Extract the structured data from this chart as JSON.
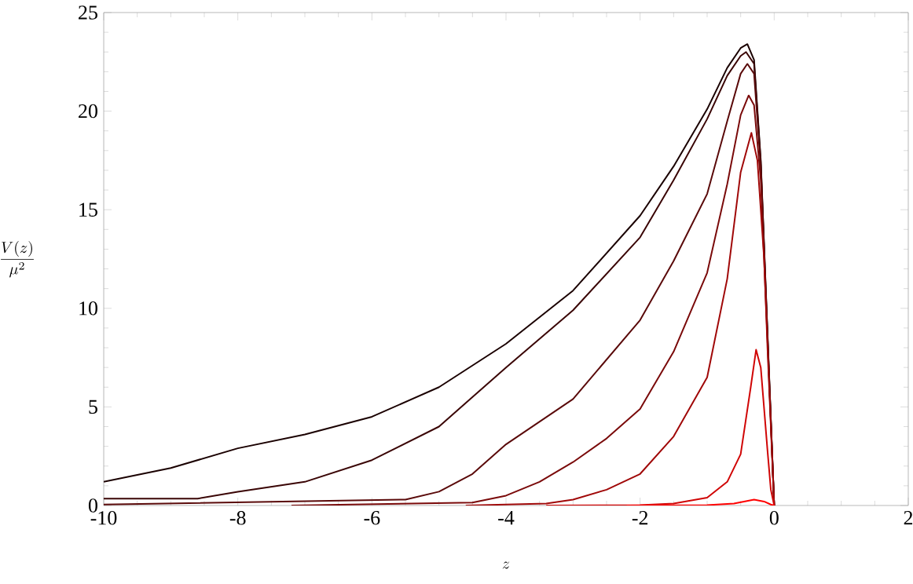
{
  "chart_data": {
    "type": "line",
    "xlabel": "z",
    "ylabel": "\\frac{V(z)}{\\mu^{2}}",
    "xlim": [
      -10,
      2
    ],
    "ylim": [
      0,
      25
    ],
    "xticks": [
      -10,
      -8,
      -6,
      -4,
      -2,
      0,
      2
    ],
    "yticks": [
      0,
      5,
      10,
      15,
      20,
      25
    ],
    "grid": false,
    "marker": "none",
    "series": [
      {
        "color": "#1a0000",
        "x": [
          -10,
          -9,
          -8,
          -7,
          -6,
          -5,
          -4,
          -3,
          -2,
          -1.5,
          -1,
          -0.7,
          -0.5,
          -0.4,
          -0.3,
          -0.2,
          -0.1,
          0
        ],
        "values": [
          1.2,
          1.9,
          2.9,
          3.6,
          4.5,
          6.0,
          8.2,
          10.9,
          14.7,
          17.2,
          20.1,
          22.2,
          23.2,
          23.4,
          22.6,
          17.5,
          8.8,
          0
        ]
      },
      {
        "color": "#3a0505",
        "x": [
          -10,
          -8.6,
          -8,
          -7,
          -6,
          -5,
          -4,
          -3,
          -2,
          -1.5,
          -1,
          -0.7,
          -0.5,
          -0.42,
          -0.3,
          -0.2,
          -0.1,
          0
        ],
        "values": [
          0.35,
          0.35,
          0.7,
          1.2,
          2.3,
          4.0,
          7.0,
          9.9,
          13.6,
          16.5,
          19.6,
          21.8,
          22.8,
          23.0,
          22.4,
          17.4,
          8.7,
          0
        ]
      },
      {
        "color": "#5a0a0a",
        "x": [
          -10,
          -5.5,
          -5,
          -4.5,
          -4,
          -3,
          -2,
          -1.5,
          -1,
          -0.7,
          -0.5,
          -0.4,
          -0.3,
          -0.2,
          -0.1,
          0
        ],
        "values": [
          0.05,
          0.3,
          0.7,
          1.6,
          3.1,
          5.4,
          9.4,
          12.4,
          15.8,
          19.5,
          21.9,
          22.4,
          21.9,
          17.2,
          8.6,
          0
        ]
      },
      {
        "color": "#7a0a0a",
        "x": [
          -7.2,
          -4.5,
          -4,
          -3.5,
          -3,
          -2.5,
          -2,
          -1.5,
          -1,
          -0.7,
          -0.5,
          -0.38,
          -0.3,
          -0.2,
          -0.1,
          0
        ],
        "values": [
          0,
          0.15,
          0.5,
          1.2,
          2.2,
          3.4,
          4.9,
          7.8,
          11.8,
          16.3,
          19.8,
          20.8,
          20.3,
          16.5,
          8.4,
          0
        ]
      },
      {
        "color": "#a00808",
        "x": [
          -4.6,
          -3.4,
          -3,
          -2.5,
          -2,
          -1.5,
          -1,
          -0.7,
          -0.5,
          -0.34,
          -0.25,
          -0.15,
          -0.1,
          0
        ],
        "values": [
          0,
          0.1,
          0.3,
          0.8,
          1.6,
          3.5,
          6.5,
          11.5,
          16.9,
          18.9,
          17.5,
          12.5,
          8,
          0
        ]
      },
      {
        "color": "#d00505",
        "x": [
          -3.4,
          -2,
          -1.5,
          -1,
          -0.7,
          -0.5,
          -0.35,
          -0.27,
          -0.2,
          -0.1,
          -0.05,
          0
        ],
        "values": [
          0,
          0.02,
          0.1,
          0.4,
          1.2,
          2.6,
          6.0,
          7.9,
          7.0,
          2.8,
          0.8,
          0
        ]
      },
      {
        "color": "#ff0000",
        "x": [
          -2.2,
          -1,
          -0.6,
          -0.45,
          -0.3,
          -0.15,
          -0.05,
          0
        ],
        "values": [
          0,
          0.02,
          0.1,
          0.2,
          0.3,
          0.2,
          0.05,
          0
        ]
      }
    ]
  }
}
